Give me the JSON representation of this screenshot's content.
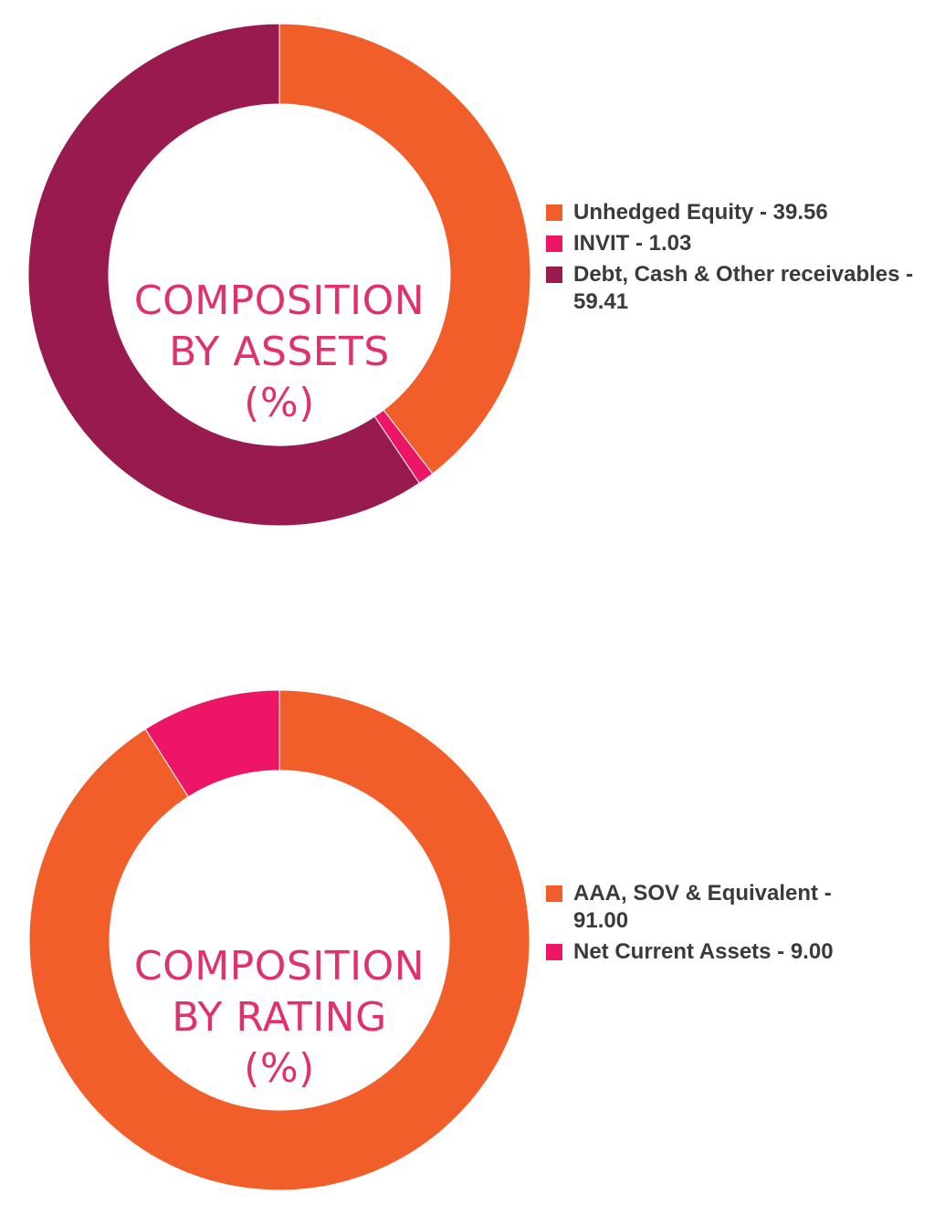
{
  "chart_data": [
    {
      "type": "pie",
      "title_lines": [
        "COMPOSITION",
        "BY ASSETS",
        "(%)"
      ],
      "title_color": "#E0306E",
      "categories": [
        "Unhedged Equity",
        "INVIT",
        "Debt, Cash & Other receivables"
      ],
      "values": [
        39.56,
        1.03,
        59.41
      ],
      "colors": [
        "#F15E2A",
        "#EC1566",
        "#991A4E"
      ],
      "legend_labels": [
        "Unhedged Equity - 39.56",
        "INVIT - 1.03",
        "Debt, Cash & Other receivables - 59.41"
      ],
      "legend": "right"
    },
    {
      "type": "pie",
      "title_lines": [
        "COMPOSITION",
        "BY RATING",
        "(%)"
      ],
      "title_color": "#E0306E",
      "categories": [
        "AAA, SOV & Equivalent",
        "Net Current Assets"
      ],
      "values": [
        91.0,
        9.0
      ],
      "colors": [
        "#F15E2A",
        "#EC1566"
      ],
      "legend_labels": [
        "AAA, SOV & Equivalent - 91.00",
        "Net Current Assets - 9.00"
      ],
      "legend": "right"
    }
  ]
}
